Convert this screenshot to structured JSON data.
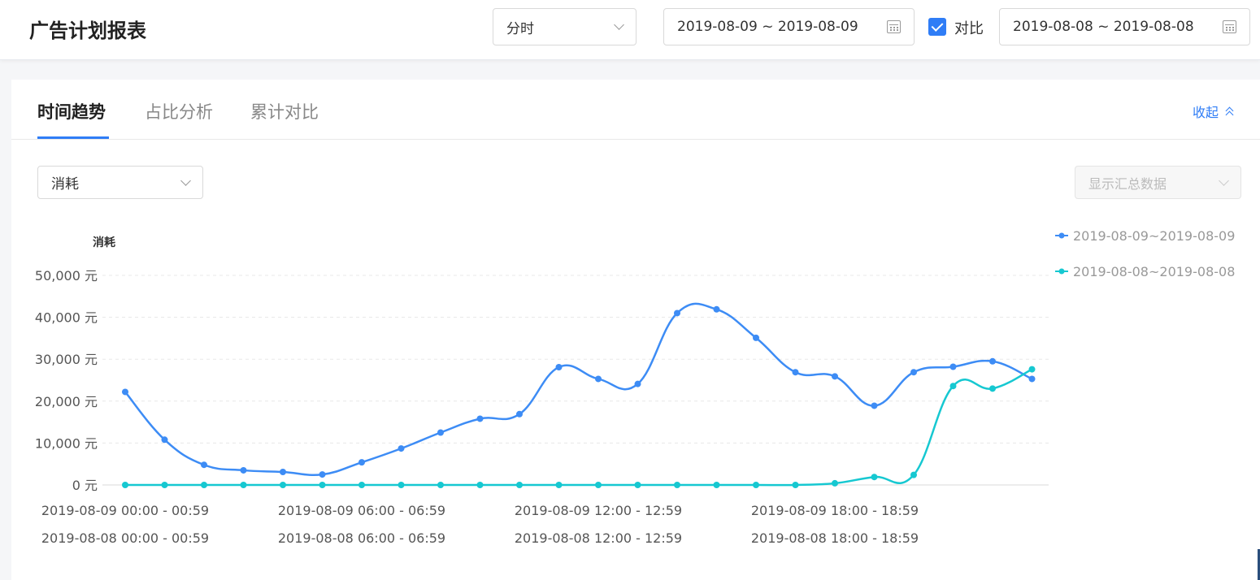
{
  "header": {
    "title": "广告计划报表",
    "granularity": "分时",
    "date_range": "2019-08-09 ~ 2019-08-09",
    "compare_label": "对比",
    "compare_range": "2019-08-08 ~ 2019-08-08"
  },
  "tabs": [
    {
      "label": "时间趋势",
      "active": true
    },
    {
      "label": "占比分析",
      "active": false
    },
    {
      "label": "累计对比",
      "active": false
    }
  ],
  "collapse_label": "收起",
  "metric_select": "消耗",
  "summary_select": "显示汇总数据",
  "colors": {
    "accent": "#2f7df6",
    "series1": "#3d8cf5",
    "series2": "#16c8d1"
  },
  "chart_data": {
    "type": "line",
    "ylabel": "消耗",
    "ylim": [
      0,
      50000
    ],
    "yticks": [
      "0 元",
      "10,000 元",
      "20,000 元",
      "30,000 元",
      "40,000 元",
      "50,000 元"
    ],
    "xtick_rows": [
      [
        "2019-08-09 00:00 - 00:59",
        "2019-08-09 06:00 - 06:59",
        "2019-08-09 12:00 - 12:59",
        "2019-08-09 18:00 - 18:59"
      ],
      [
        "2019-08-08 00:00 - 00:59",
        "2019-08-08 06:00 - 06:59",
        "2019-08-08 12:00 - 12:59",
        "2019-08-08 18:00 - 18:59"
      ]
    ],
    "grid": true,
    "legend_position": "top-right",
    "series": [
      {
        "name": "2019-08-09~2019-08-09",
        "values": [
          22200,
          10800,
          4800,
          3500,
          3100,
          2500,
          5400,
          8700,
          12500,
          15800,
          16900,
          28100,
          25300,
          24100,
          41000,
          41900,
          35100,
          26900,
          25900,
          18900,
          26900,
          28200,
          29500,
          25300
        ]
      },
      {
        "name": "2019-08-08~2019-08-08",
        "values": [
          0,
          0,
          0,
          0,
          0,
          0,
          0,
          0,
          0,
          0,
          0,
          0,
          0,
          0,
          0,
          0,
          0,
          0,
          400,
          1900,
          2400,
          23600,
          23000,
          27600
        ]
      }
    ]
  }
}
